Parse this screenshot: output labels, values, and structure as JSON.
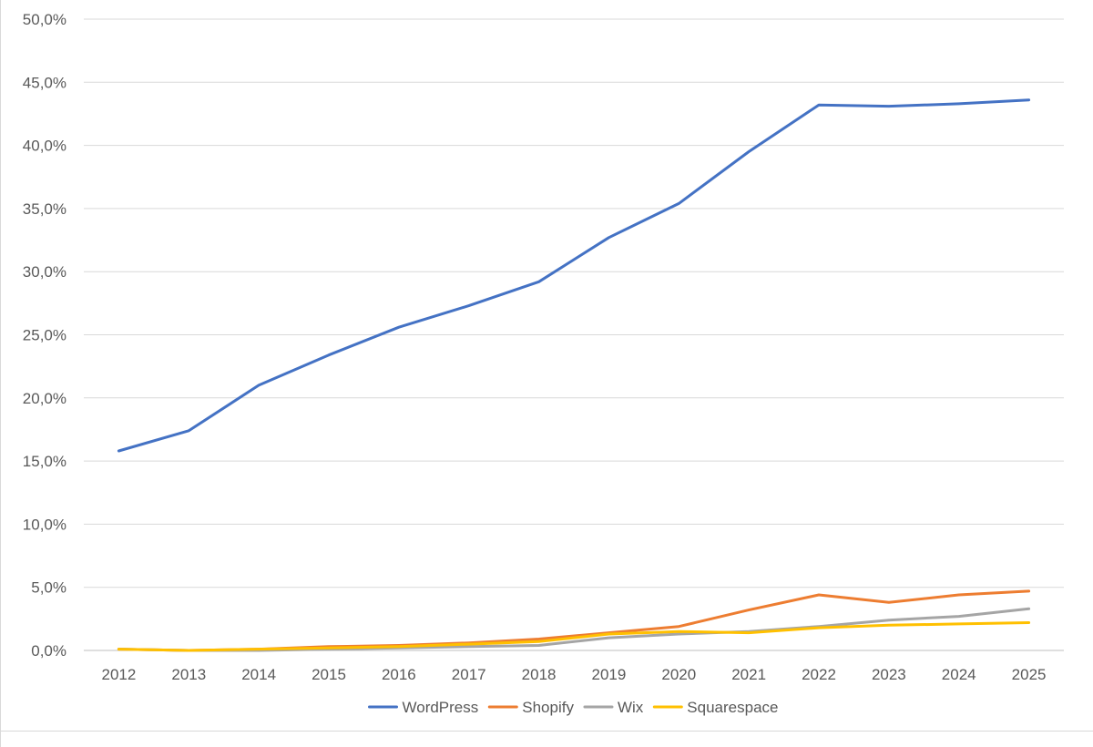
{
  "chart_data": {
    "type": "line",
    "title": "",
    "xlabel": "",
    "ylabel": "",
    "categories": [
      "2012",
      "2013",
      "2014",
      "2015",
      "2016",
      "2017",
      "2018",
      "2019",
      "2020",
      "2021",
      "2022",
      "2023",
      "2024",
      "2025"
    ],
    "ylim": [
      0,
      50
    ],
    "y_ticks": [
      0,
      5,
      10,
      15,
      20,
      25,
      30,
      35,
      40,
      45,
      50
    ],
    "y_tick_labels": [
      "0,0%",
      "5,0%",
      "10,0%",
      "15,0%",
      "20,0%",
      "25,0%",
      "30,0%",
      "35,0%",
      "40,0%",
      "45,0%",
      "50,0%"
    ],
    "grid": true,
    "legend_position": "bottom",
    "series": [
      {
        "name": "WordPress",
        "color": "#4472c4",
        "values": [
          15.8,
          17.4,
          21.0,
          23.4,
          25.6,
          27.3,
          29.2,
          32.7,
          35.4,
          39.5,
          43.2,
          43.1,
          43.3,
          43.6
        ]
      },
      {
        "name": "Shopify",
        "color": "#ed7d31",
        "values": [
          0.1,
          0.0,
          0.1,
          0.3,
          0.4,
          0.6,
          0.9,
          1.4,
          1.9,
          3.2,
          4.4,
          3.8,
          4.4,
          4.7
        ]
      },
      {
        "name": "Wix",
        "color": "#a5a5a5",
        "values": [
          0.1,
          0.0,
          0.0,
          0.1,
          0.2,
          0.3,
          0.4,
          1.0,
          1.3,
          1.5,
          1.9,
          2.4,
          2.7,
          3.3
        ]
      },
      {
        "name": "Squarespace",
        "color": "#ffc000",
        "values": [
          0.1,
          0.0,
          0.1,
          0.2,
          0.3,
          0.5,
          0.7,
          1.3,
          1.5,
          1.4,
          1.8,
          2.0,
          2.1,
          2.2
        ]
      }
    ]
  }
}
